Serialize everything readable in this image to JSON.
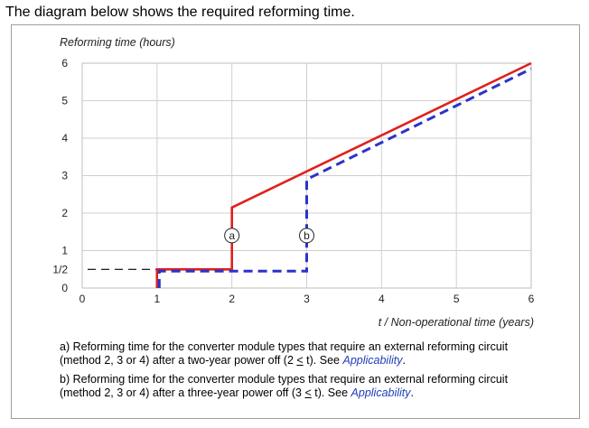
{
  "intro_text": "The diagram below shows the required reforming time.",
  "chart_data": {
    "type": "line",
    "ylabel": "Reforming time (hours)",
    "xlabel": "t / Non-operational time (years)",
    "xlim": [
      0,
      6
    ],
    "ylim": [
      0,
      6
    ],
    "x_ticks": [
      "0",
      "1",
      "2",
      "3",
      "4",
      "5",
      "6"
    ],
    "y_ticks": [
      "0",
      "1/2",
      "1",
      "2",
      "3",
      "4",
      "5",
      "6"
    ],
    "y_tick_values": [
      0,
      0.5,
      1,
      2,
      3,
      4,
      5,
      6
    ],
    "grid": true,
    "series": [
      {
        "name": "a",
        "style": "solid",
        "color": "#e0201b",
        "points": [
          [
            1,
            0
          ],
          [
            1,
            0.5
          ],
          [
            2,
            0.5
          ],
          [
            2,
            2.15
          ],
          [
            6,
            6
          ]
        ]
      },
      {
        "name": "b",
        "style": "dashed",
        "color": "#2a33c9",
        "points": [
          [
            1.03,
            0
          ],
          [
            1.03,
            0.45
          ],
          [
            3,
            0.45
          ],
          [
            3,
            2.9
          ],
          [
            6,
            5.85
          ]
        ]
      }
    ],
    "reference_lines": [
      {
        "style": "dashed",
        "color": "#000000",
        "points": [
          [
            0,
            0.5
          ],
          [
            1,
            0.5
          ]
        ]
      }
    ],
    "markers": [
      {
        "label": "a",
        "x": 2,
        "y": 1.4
      },
      {
        "label": "b",
        "x": 3,
        "y": 1.4
      }
    ]
  },
  "notes": {
    "a": {
      "prefix": "a) Reforming time for the converter module types that require an external reforming circuit (method 2, 3 or 4) after a two-year power off (2 ",
      "le": "<",
      "suffix": " t). See ",
      "link": "Applicability",
      "end": "."
    },
    "b": {
      "prefix": "b) Reforming time for the converter module types that require an external reforming circuit (method 2, 3 or 4) after a three-year power off (3 ",
      "le": "<",
      "suffix": " t). See ",
      "link": "Applicability",
      "end": "."
    }
  }
}
